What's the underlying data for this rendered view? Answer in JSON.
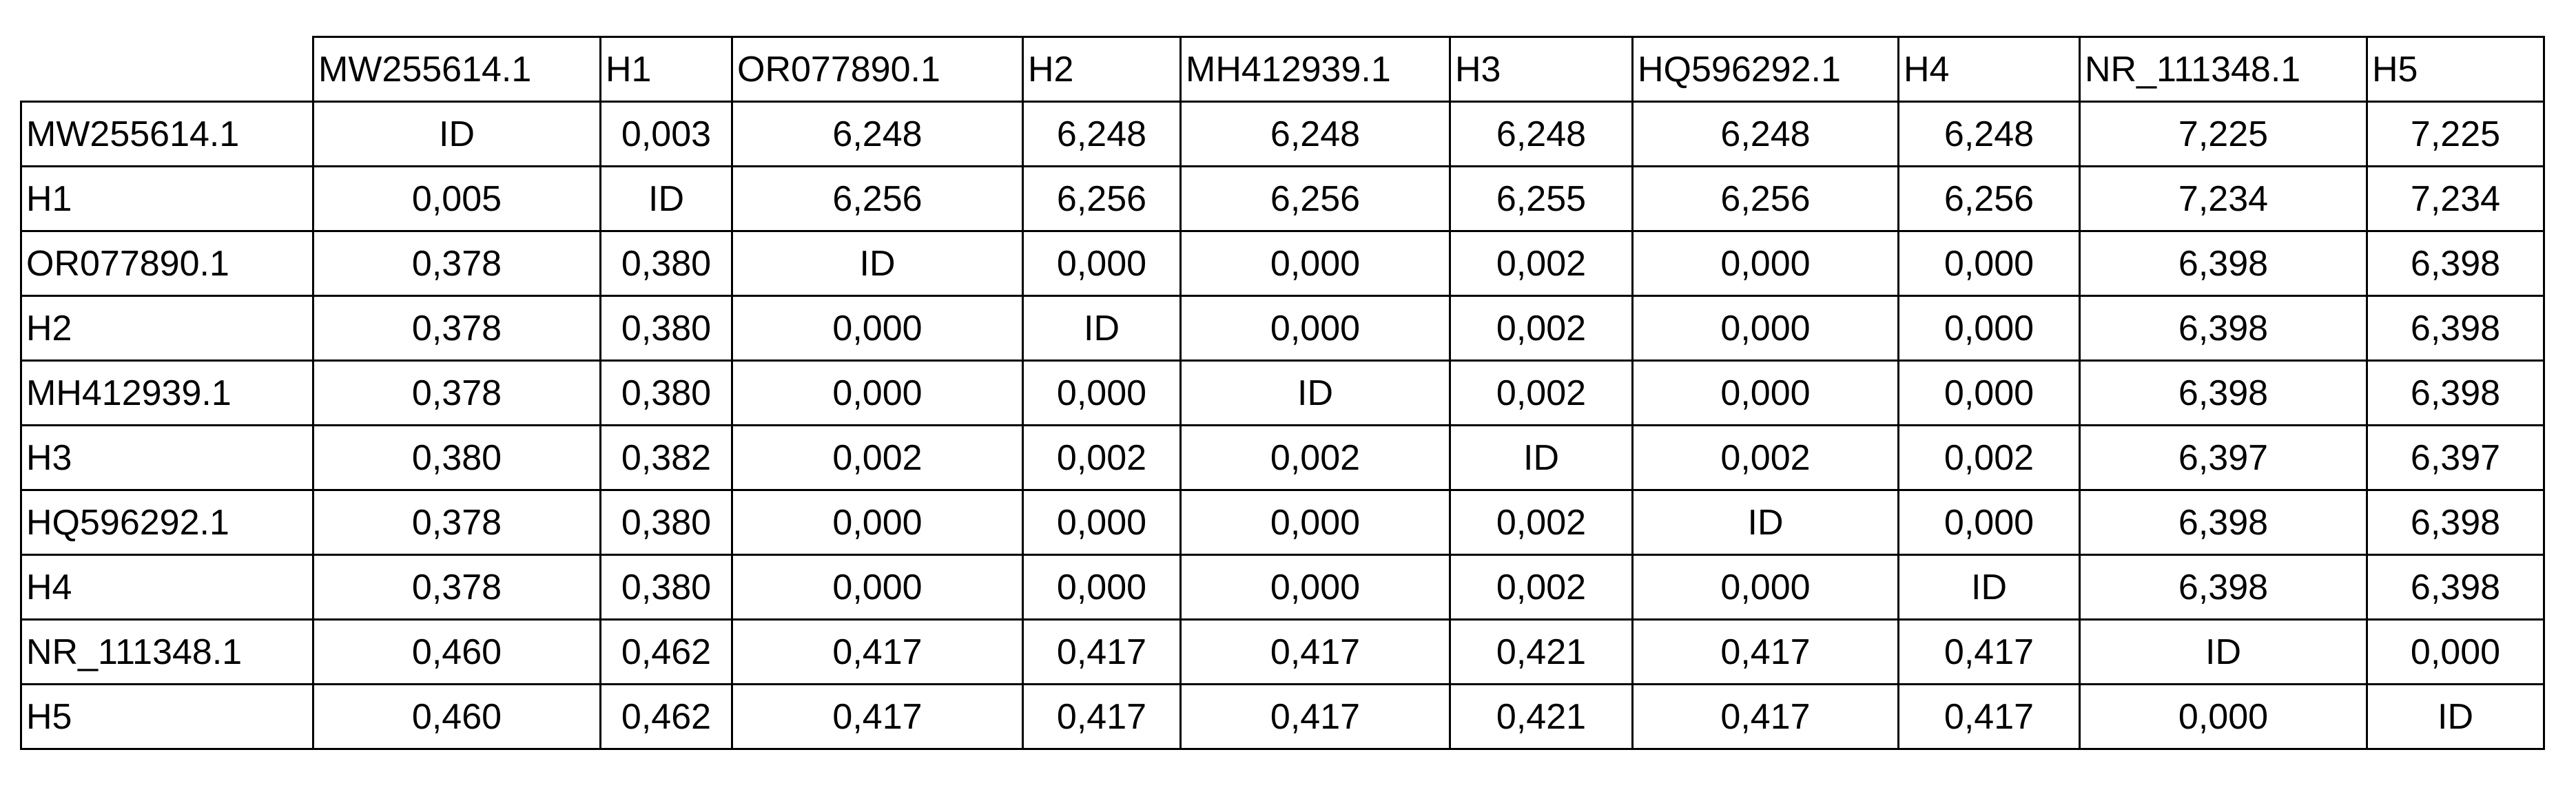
{
  "table": {
    "header": [
      "MW255614.1",
      "H1",
      "OR077890.1",
      "H2",
      "MH412939.1",
      "H3",
      "HQ596292.1",
      "H4",
      "NR_111348.1",
      "H5"
    ],
    "rows": [
      [
        "MW255614.1",
        "ID",
        "0,003",
        "6,248",
        "6,248",
        "6,248",
        "6,248",
        "6,248",
        "6,248",
        "7,225",
        "7,225"
      ],
      [
        "H1",
        "0,005",
        "ID",
        "6,256",
        "6,256",
        "6,256",
        "6,255",
        "6,256",
        "6,256",
        "7,234",
        "7,234"
      ],
      [
        "OR077890.1",
        "0,378",
        "0,380",
        "ID",
        "0,000",
        "0,000",
        "0,002",
        "0,000",
        "0,000",
        "6,398",
        "6,398"
      ],
      [
        "H2",
        "0,378",
        "0,380",
        "0,000",
        "ID",
        "0,000",
        "0,002",
        "0,000",
        "0,000",
        "6,398",
        "6,398"
      ],
      [
        "MH412939.1",
        "0,378",
        "0,380",
        "0,000",
        "0,000",
        "ID",
        "0,002",
        "0,000",
        "0,000",
        "6,398",
        "6,398"
      ],
      [
        "H3",
        "0,380",
        "0,382",
        "0,002",
        "0,002",
        "0,002",
        "ID",
        "0,002",
        "0,002",
        "6,397",
        "6,397"
      ],
      [
        "HQ596292.1",
        "0,378",
        "0,380",
        "0,000",
        "0,000",
        "0,000",
        "0,002",
        "ID",
        "0,000",
        "6,398",
        "6,398"
      ],
      [
        "H4",
        "0,378",
        "0,380",
        "0,000",
        "0,000",
        "0,000",
        "0,002",
        "0,000",
        "ID",
        "6,398",
        "6,398"
      ],
      [
        "NR_111348.1",
        "0,460",
        "0,462",
        "0,417",
        "0,417",
        "0,417",
        "0,421",
        "0,417",
        "0,417",
        "ID",
        "0,000"
      ],
      [
        "H5",
        "0,460",
        "0,462",
        "0,417",
        "0,417",
        "0,417",
        "0,421",
        "0,417",
        "0,417",
        "0,000",
        "ID"
      ]
    ]
  }
}
